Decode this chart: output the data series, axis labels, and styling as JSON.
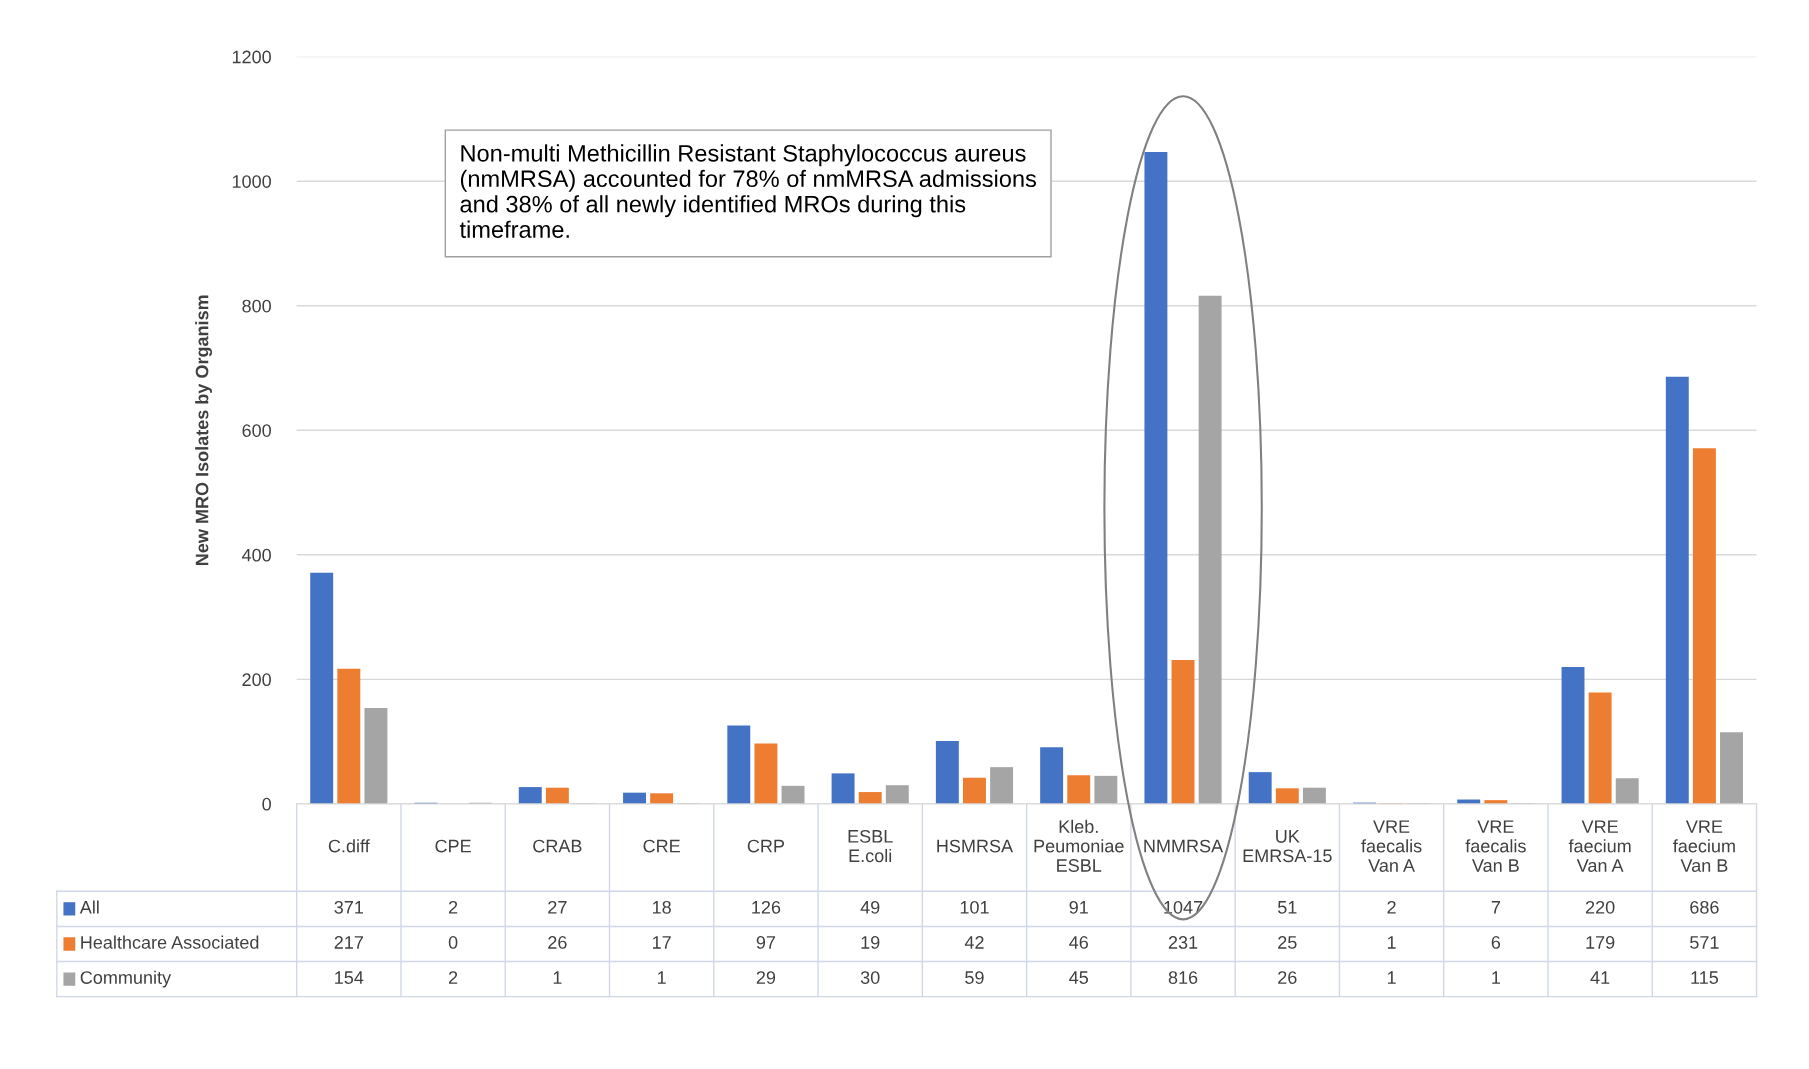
{
  "chart_data": {
    "type": "bar",
    "ylabel": "New MRO Isolates by Organism",
    "categories": [
      "C.diff",
      "CPE",
      "CRAB",
      "CRE",
      "CRP",
      "ESBL E.coli",
      "HSMRSA",
      "Kleb. Peumoniae ESBL",
      "NMMRSA",
      "UK EMRSA-15",
      "VRE faecalis Van A",
      "VRE faecalis Van B",
      "VRE faecium Van A",
      "VRE faecium Van B"
    ],
    "series": [
      {
        "name": "All",
        "color": "#4472c4",
        "values": [
          371,
          2,
          27,
          18,
          126,
          49,
          101,
          91,
          1047,
          51,
          2,
          7,
          220,
          686
        ]
      },
      {
        "name": "Healthcare Associated",
        "color": "#ed7d31",
        "values": [
          217,
          0,
          26,
          17,
          97,
          19,
          42,
          46,
          231,
          25,
          1,
          6,
          179,
          571
        ]
      },
      {
        "name": "Community",
        "color": "#a5a5a5",
        "values": [
          154,
          2,
          1,
          1,
          29,
          30,
          59,
          45,
          816,
          26,
          1,
          1,
          41,
          115
        ]
      }
    ],
    "ylim": [
      0,
      1200
    ],
    "yticks": [
      0,
      200,
      400,
      600,
      800,
      1000,
      1200
    ],
    "grid": "y",
    "legend": "bottom",
    "data_labels": true,
    "annotations": [
      "Non-multi Methicillin Resistant Staphylococcus aureus (nmMRSA) accounted for 78% of nmMRSA admissions and 38% of all newly identified MROs during this timeframe."
    ]
  }
}
